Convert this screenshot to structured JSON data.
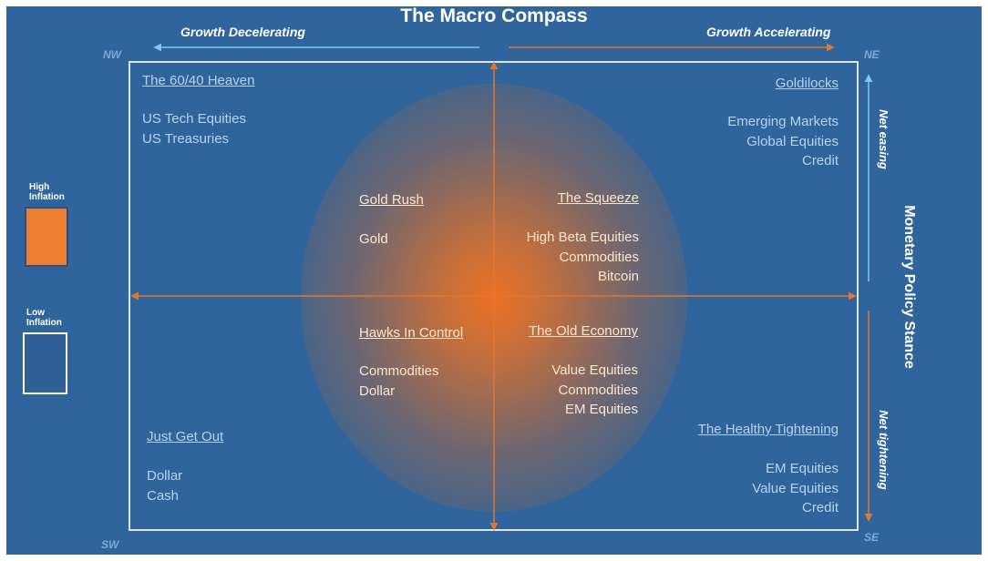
{
  "title": "The Macro Compass",
  "growth": {
    "left": "Growth Decelerating",
    "right": "Growth Accelerating"
  },
  "corners": {
    "nw": "NW",
    "ne": "NE",
    "sw": "SW",
    "se": "SE"
  },
  "policy": {
    "label": "Monetary Policy Stance",
    "easing": "Net easing",
    "tightening": "Net tightening"
  },
  "legend": [
    {
      "label": "High Inflation",
      "color": "#ed7d31"
    },
    {
      "label": "Low Inflation",
      "color": "#2f5f96"
    }
  ],
  "quadrants": {
    "nw_outer": {
      "title": "The 60/40 Heaven",
      "items": [
        "US Tech Equities",
        "US Treasuries"
      ]
    },
    "ne_outer": {
      "title": "Goldilocks",
      "items": [
        "Emerging Markets",
        "Global Equities",
        "Credit"
      ]
    },
    "sw_outer": {
      "title": "Just Get Out",
      "items": [
        "Dollar",
        "Cash"
      ]
    },
    "se_outer": {
      "title": "The Healthy Tightening",
      "items": [
        "EM Equities",
        "Value Equities",
        "Credit"
      ]
    },
    "nw_inner": {
      "title": "Gold Rush",
      "items": [
        "Gold"
      ]
    },
    "ne_inner": {
      "title": "The Squeeze",
      "items": [
        "High Beta Equities",
        "Commodities",
        "Bitcoin"
      ]
    },
    "sw_inner": {
      "title": "Hawks In Control",
      "items": [
        "Commodities",
        "Dollar"
      ]
    },
    "se_inner": {
      "title": "The Old Economy",
      "items": [
        "Value Equities",
        "Commodities",
        "EM Equities"
      ]
    }
  },
  "colors": {
    "background": "#2f659c",
    "axis_arrow": "#e2772f",
    "accent_arrow": "#7cc8ee",
    "frame": "#dfe6ee"
  }
}
